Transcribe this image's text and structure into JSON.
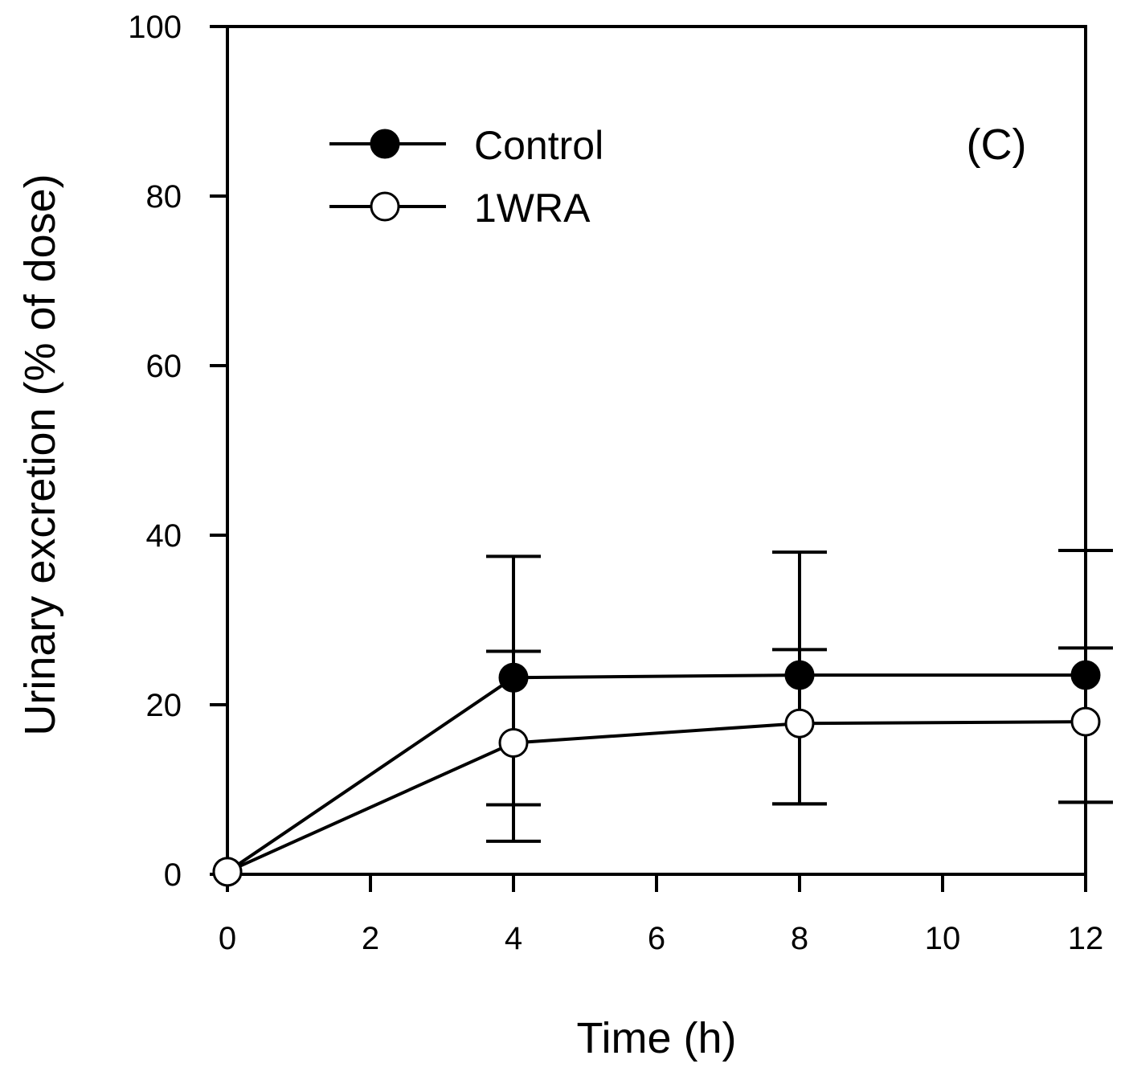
{
  "chart_data": {
    "type": "line",
    "title": "",
    "panel_label": "(C)",
    "xlabel": "Time (h)",
    "ylabel": "Urinary excretion (% of dose)",
    "xlim": [
      0,
      12
    ],
    "ylim": [
      0,
      100
    ],
    "x_ticks": [
      0,
      2,
      4,
      6,
      8,
      10,
      12
    ],
    "y_ticks": [
      0,
      20,
      40,
      60,
      80,
      100
    ],
    "grid": false,
    "legend_position": "top-left",
    "series": [
      {
        "name": "Control",
        "marker": "filled-circle",
        "x": [
          0,
          4,
          8,
          12
        ],
        "y": [
          0.3,
          23.2,
          23.5,
          23.5
        ],
        "err_upper": [
          null,
          37.5,
          38.0,
          38.2
        ],
        "err_lower": [
          null,
          8.2,
          8.3,
          8.5
        ]
      },
      {
        "name": "1WRA",
        "marker": "open-circle",
        "x": [
          0,
          4,
          8,
          12
        ],
        "y": [
          0.3,
          15.5,
          17.8,
          18.0
        ],
        "err_upper": [
          null,
          26.3,
          26.5,
          26.7
        ],
        "err_lower": [
          null,
          3.9,
          8.3,
          8.5
        ]
      }
    ]
  }
}
